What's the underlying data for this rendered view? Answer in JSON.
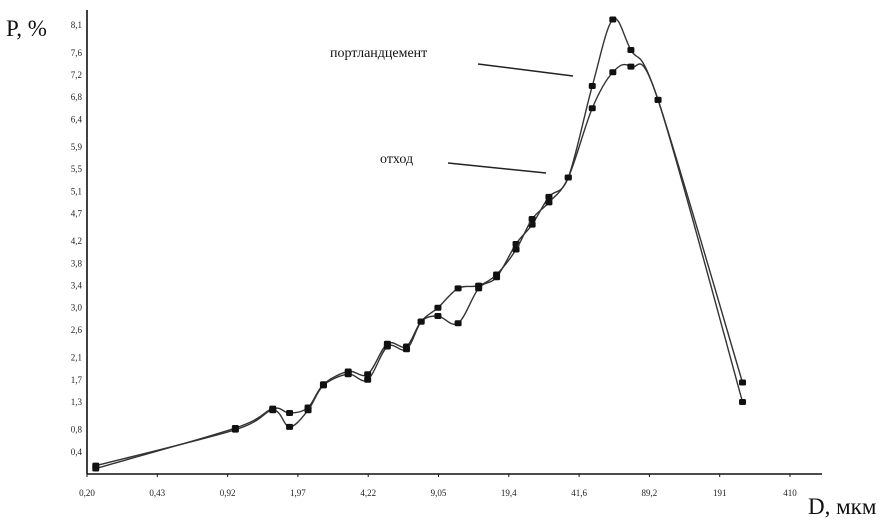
{
  "chart_data": {
    "type": "line",
    "ylabel": "P, %",
    "xlabel": "D, мкм",
    "x_ticks": [
      "0,20",
      "0,43",
      "0,92",
      "1,97",
      "4,22",
      "9,05",
      "19,4",
      "41,6",
      "89,2",
      "191",
      "410"
    ],
    "y_ticks": [
      "8,1",
      "7,6",
      "7,2",
      "6,8",
      "6,4",
      "5,9",
      "5,5",
      "5,1",
      "4,7",
      "4,2",
      "3,8",
      "3,4",
      "3,0",
      "2,6",
      "2,1",
      "1,7",
      "1,3",
      "0,8",
      "0,4"
    ],
    "x_scale": "log",
    "xlim": [
      0.2,
      410
    ],
    "ylim": [
      0,
      8.3
    ],
    "series": [
      {
        "name": "портландцемент",
        "x": [
          0.22,
          1.0,
          1.5,
          1.8,
          2.2,
          2.6,
          3.4,
          4.2,
          5.2,
          6.4,
          7.5,
          9.0,
          11.2,
          14.0,
          17.0,
          21.0,
          25.0,
          30.0,
          37.0,
          48.0,
          60.0,
          73.0,
          98.0,
          245.0
        ],
        "y": [
          0.1,
          0.83,
          1.18,
          1.1,
          1.2,
          1.62,
          1.85,
          1.8,
          2.35,
          2.3,
          2.75,
          2.85,
          2.72,
          3.35,
          3.55,
          4.15,
          4.5,
          5.0,
          5.35,
          7.0,
          8.2,
          7.65,
          6.75,
          1.65
        ]
      },
      {
        "name": "отход",
        "x": [
          0.22,
          1.0,
          1.5,
          1.8,
          2.2,
          2.6,
          3.4,
          4.2,
          5.2,
          6.4,
          7.5,
          9.0,
          11.2,
          14.0,
          17.0,
          21.0,
          25.0,
          30.0,
          37.0,
          48.0,
          60.0,
          73.0,
          98.0,
          245.0
        ],
        "y": [
          0.15,
          0.8,
          1.15,
          0.85,
          1.15,
          1.6,
          1.8,
          1.7,
          2.3,
          2.25,
          2.75,
          3.0,
          3.35,
          3.4,
          3.6,
          4.05,
          4.6,
          4.9,
          5.35,
          6.6,
          7.25,
          7.35,
          6.75,
          1.3
        ]
      }
    ],
    "annotations": [
      {
        "text": "портландцемент",
        "series": 0
      },
      {
        "text": "отход",
        "series": 1
      }
    ]
  }
}
